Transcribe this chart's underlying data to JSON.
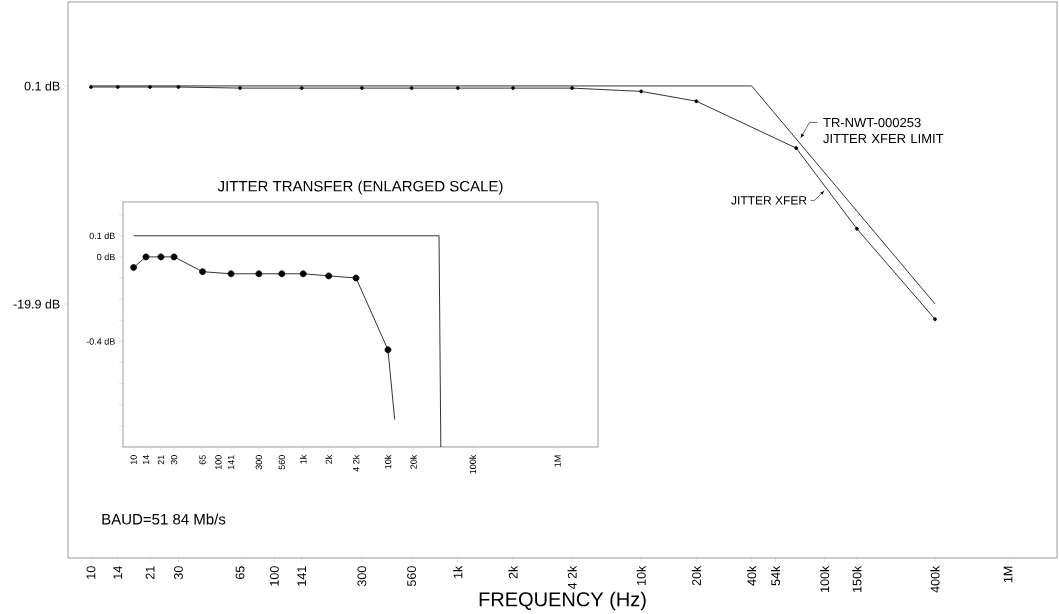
{
  "chart_data": [
    {
      "type": "line",
      "xlabel": "FREQUENCY (Hz)",
      "log": "x",
      "xlim": [
        7.5,
        1850000
      ],
      "ylim": [
        -43.2,
        7.8
      ],
      "xticks": [
        10,
        14,
        21,
        30,
        65,
        100,
        141,
        300,
        560,
        {
          "value": 1000,
          "label": "1k"
        },
        {
          "value": 2000,
          "label": "2k"
        },
        {
          "value": 4200,
          "label": "4 2k"
        },
        {
          "value": 10000,
          "label": "10k"
        },
        {
          "value": 20000,
          "label": "20k"
        },
        {
          "value": 40000,
          "label": "40k"
        },
        {
          "value": 54000,
          "label": "54k"
        },
        {
          "value": 100000,
          "label": "100k"
        },
        {
          "value": 150000,
          "label": "150k"
        },
        {
          "value": 400000,
          "label": "400k"
        },
        {
          "value": 1000000,
          "label": "1M"
        }
      ],
      "yticks": [
        {
          "value": 0.1,
          "label": "0.1 dB"
        },
        {
          "value": -19.9,
          "label": "-19.9 dB"
        }
      ],
      "series": [
        {
          "name": "JITTER XFER",
          "color": "#000000",
          "marker": "circle",
          "x": [
            10,
            14,
            21,
            30,
            65,
            141,
            300,
            560,
            1000,
            2000,
            4200,
            10000,
            20000,
            70000,
            150000,
            400000
          ],
          "values": [
            0,
            0,
            0,
            0,
            -0.1,
            -0.1,
            -0.1,
            -0.1,
            -0.1,
            -0.1,
            -0.1,
            -0.4,
            -1.3,
            -5.6,
            -13,
            -21.3
          ]
        },
        {
          "name": "TR-NWT-000253 JITTER XFER LIMIT",
          "color": "#000000",
          "marker": "none",
          "x": [
            10,
            40000,
            400000
          ],
          "values": [
            0.1,
            0.1,
            -19.9
          ]
        }
      ],
      "annotations": [
        "BAUD=51 84 Mb/s"
      ]
    },
    {
      "type": "line",
      "title": "JITTER TRANSFER (ENLARGED SCALE)",
      "log": "x",
      "xlim": [
        7.5,
        3000000
      ],
      "ylim": [
        -0.9,
        0.26
      ],
      "xticks": [
        10,
        14,
        21,
        30,
        65,
        100,
        141,
        300,
        560,
        {
          "value": 1000,
          "label": "1k"
        },
        {
          "value": 2000,
          "label": "2k"
        },
        {
          "value": 4200,
          "label": "4 2k"
        },
        {
          "value": 10000,
          "label": "10k"
        },
        {
          "value": 20000,
          "label": "20k"
        },
        {
          "value": 100000,
          "label": "100k"
        },
        {
          "value": 1000000,
          "label": "1M"
        }
      ],
      "yticks": [
        {
          "value": 0.2,
          "label": null
        },
        {
          "value": 0.1,
          "label": "0.1 dB"
        },
        {
          "value": 0,
          "label": "0 dB"
        },
        {
          "value": -0.1,
          "label": null
        },
        {
          "value": -0.2,
          "label": null
        },
        {
          "value": -0.3,
          "label": null
        },
        {
          "value": -0.4,
          "label": "-0.4 dB"
        },
        {
          "value": -0.5,
          "label": null
        },
        {
          "value": -0.6,
          "label": null
        },
        {
          "value": -0.7,
          "label": null
        },
        {
          "value": -0.8,
          "label": null
        }
      ],
      "series": [
        {
          "color": "#000000",
          "marker": "circle",
          "x": [
            10,
            14,
            21,
            30,
            65,
            141,
            300,
            560,
            1000,
            2000,
            4200,
            10000
          ],
          "values": [
            -0.05,
            0,
            0,
            0,
            -0.07,
            -0.08,
            -0.08,
            -0.08,
            -0.08,
            -0.09,
            -0.1,
            -0.44
          ]
        },
        {
          "color": "#000000",
          "marker": "none",
          "x": [
            10000,
            12000
          ],
          "values": [
            -0.44,
            -0.77
          ]
        },
        {
          "color": "#000000",
          "marker": "none",
          "x": [
            10,
            40000,
            42000
          ],
          "values": [
            0.1,
            0.1,
            -0.9
          ]
        }
      ]
    }
  ]
}
